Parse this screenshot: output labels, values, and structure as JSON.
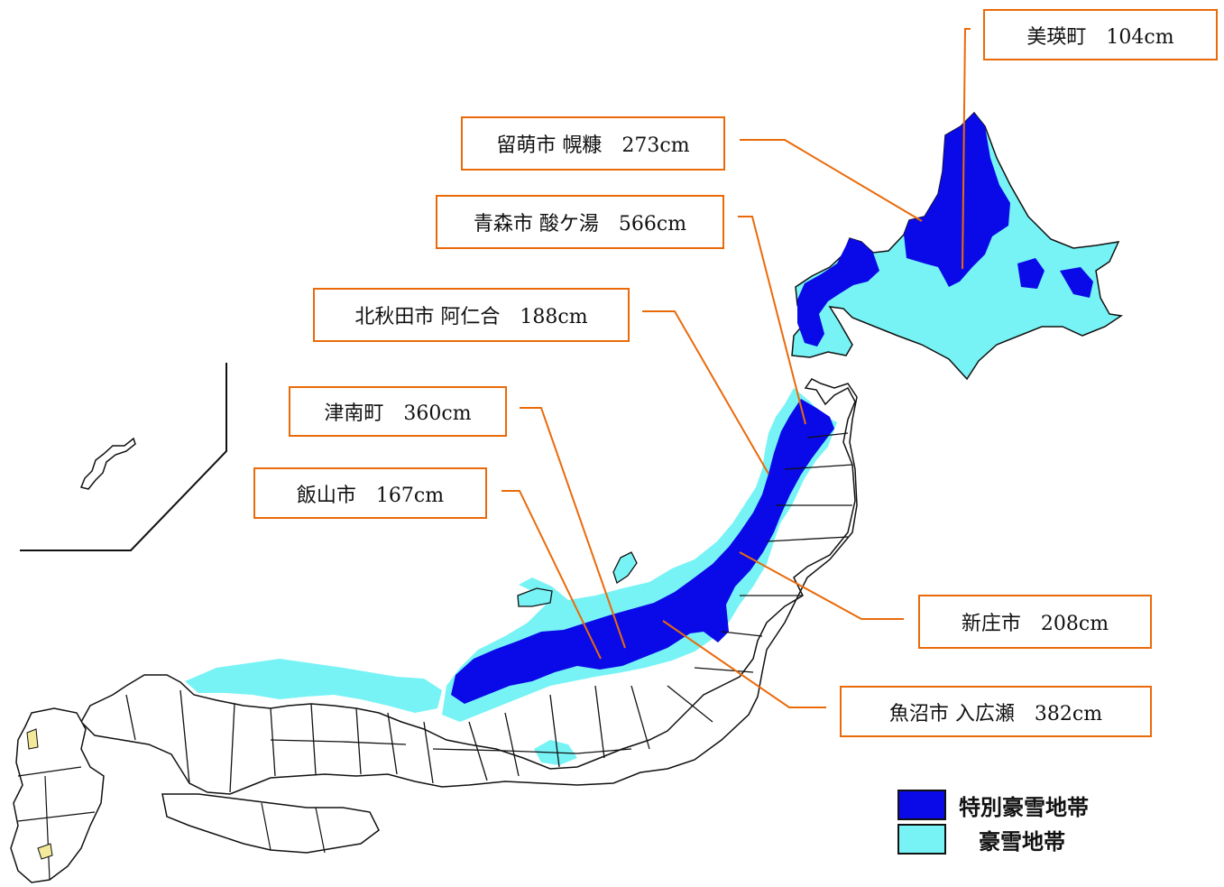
{
  "colors": {
    "special_heavy_snow": "#0a0ae8",
    "heavy_snow": "#77f3f5",
    "leader_line": "#ea6a0a",
    "border": "#111111"
  },
  "callouts": [
    {
      "id": "biei",
      "text": "美瑛町　104cm"
    },
    {
      "id": "rumoi",
      "text": "留萌市 幌糠　273cm"
    },
    {
      "id": "aomori",
      "text": "青森市 酸ケ湯　566cm"
    },
    {
      "id": "kitaakita",
      "text": "北秋田市 阿仁合　188cm"
    },
    {
      "id": "tsunan",
      "text": "津南町　360cm"
    },
    {
      "id": "iiyama",
      "text": "飯山市　167cm"
    },
    {
      "id": "shinjo",
      "text": "新庄市　208cm"
    },
    {
      "id": "uonuma",
      "text": "魚沼市 入広瀬　382cm"
    }
  ],
  "legend": [
    {
      "label": "特別豪雪地帯",
      "color_key": "special_heavy_snow"
    },
    {
      "label": "豪雪地帯",
      "color_key": "heavy_snow"
    }
  ]
}
